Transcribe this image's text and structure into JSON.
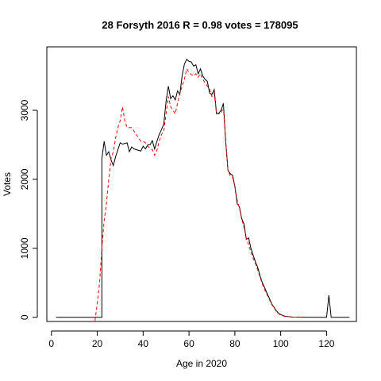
{
  "chart_data": {
    "type": "line",
    "title": "28 Forsyth 2016 R = 0.98 votes = 178095",
    "xlabel": "Age in 2020",
    "ylabel": "Votes",
    "xlim": [
      -2,
      133
    ],
    "ylim": [
      -60,
      3920
    ],
    "x_ticks": [
      0,
      20,
      40,
      60,
      80,
      100,
      120
    ],
    "y_ticks": [
      0,
      1000,
      2000,
      3000
    ],
    "grid": false,
    "series": [
      {
        "style": "solid",
        "color": "#000000",
        "points": [
          [
            2,
            0
          ],
          [
            21,
            0
          ],
          [
            22,
            0
          ],
          [
            22,
            2300
          ],
          [
            23,
            2550
          ],
          [
            24,
            2350
          ],
          [
            25,
            2400
          ],
          [
            26,
            2280
          ],
          [
            27,
            2200
          ],
          [
            28,
            2330
          ],
          [
            29,
            2430
          ],
          [
            30,
            2530
          ],
          [
            31,
            2510
          ],
          [
            32,
            2520
          ],
          [
            33,
            2530
          ],
          [
            34,
            2400
          ],
          [
            35,
            2470
          ],
          [
            36,
            2440
          ],
          [
            37,
            2430
          ],
          [
            38,
            2420
          ],
          [
            39,
            2410
          ],
          [
            40,
            2480
          ],
          [
            41,
            2440
          ],
          [
            42,
            2500
          ],
          [
            43,
            2500
          ],
          [
            44,
            2560
          ],
          [
            45,
            2440
          ],
          [
            46,
            2550
          ],
          [
            47,
            2650
          ],
          [
            48,
            2720
          ],
          [
            49,
            2800
          ],
          [
            50,
            3130
          ],
          [
            51,
            3350
          ],
          [
            52,
            3170
          ],
          [
            53,
            3210
          ],
          [
            54,
            3150
          ],
          [
            55,
            3280
          ],
          [
            56,
            3230
          ],
          [
            57,
            3500
          ],
          [
            58,
            3670
          ],
          [
            59,
            3740
          ],
          [
            60,
            3710
          ],
          [
            61,
            3700
          ],
          [
            62,
            3640
          ],
          [
            63,
            3660
          ],
          [
            64,
            3530
          ],
          [
            65,
            3600
          ],
          [
            66,
            3500
          ],
          [
            67,
            3450
          ],
          [
            68,
            3420
          ],
          [
            69,
            3250
          ],
          [
            70,
            3230
          ],
          [
            71,
            3300
          ],
          [
            72,
            2950
          ],
          [
            73,
            2960
          ],
          [
            74,
            3000
          ],
          [
            75,
            3100
          ],
          [
            76,
            2550
          ],
          [
            77,
            2130
          ],
          [
            78,
            2080
          ],
          [
            79,
            2060
          ],
          [
            80,
            1900
          ],
          [
            81,
            1650
          ],
          [
            82,
            1600
          ],
          [
            83,
            1430
          ],
          [
            84,
            1350
          ],
          [
            85,
            1130
          ],
          [
            86,
            1150
          ],
          [
            87,
            1000
          ],
          [
            88,
            900
          ],
          [
            89,
            800
          ],
          [
            90,
            720
          ],
          [
            91,
            600
          ],
          [
            92,
            500
          ],
          [
            93,
            430
          ],
          [
            94,
            350
          ],
          [
            95,
            280
          ],
          [
            96,
            200
          ],
          [
            97,
            150
          ],
          [
            98,
            100
          ],
          [
            99,
            60
          ],
          [
            100,
            40
          ],
          [
            102,
            15
          ],
          [
            105,
            5
          ],
          [
            110,
            2
          ],
          [
            115,
            0
          ],
          [
            120,
            0
          ],
          [
            121,
            320
          ],
          [
            122,
            0
          ],
          [
            130,
            0
          ]
        ]
      },
      {
        "style": "dashed",
        "color": "#ff0000",
        "points": [
          [
            19,
            -50
          ],
          [
            20,
            200
          ],
          [
            21,
            500
          ],
          [
            22,
            1000
          ],
          [
            23,
            1400
          ],
          [
            24,
            1650
          ],
          [
            25,
            2000
          ],
          [
            26,
            2300
          ],
          [
            27,
            2400
          ],
          [
            28,
            2600
          ],
          [
            29,
            2750
          ],
          [
            30,
            2850
          ],
          [
            31,
            3050
          ],
          [
            32,
            2850
          ],
          [
            33,
            2750
          ],
          [
            34,
            2750
          ],
          [
            35,
            2750
          ],
          [
            36,
            2700
          ],
          [
            37,
            2650
          ],
          [
            38,
            2600
          ],
          [
            39,
            2550
          ],
          [
            40,
            2550
          ],
          [
            41,
            2530
          ],
          [
            42,
            2480
          ],
          [
            43,
            2450
          ],
          [
            44,
            2430
          ],
          [
            45,
            2350
          ],
          [
            46,
            2420
          ],
          [
            47,
            2550
          ],
          [
            48,
            2650
          ],
          [
            49,
            2700
          ],
          [
            50,
            2950
          ],
          [
            51,
            3200
          ],
          [
            52,
            3050
          ],
          [
            53,
            3000
          ],
          [
            54,
            2950
          ],
          [
            55,
            3100
          ],
          [
            56,
            3250
          ],
          [
            57,
            3350
          ],
          [
            58,
            3450
          ],
          [
            59,
            3600
          ],
          [
            60,
            3550
          ],
          [
            61,
            3520
          ],
          [
            62,
            3500
          ],
          [
            63,
            3530
          ],
          [
            64,
            3480
          ],
          [
            65,
            3530
          ],
          [
            66,
            3450
          ],
          [
            67,
            3400
          ],
          [
            68,
            3350
          ],
          [
            69,
            3300
          ],
          [
            70,
            3200
          ],
          [
            71,
            3250
          ],
          [
            72,
            2950
          ],
          [
            73,
            2950
          ],
          [
            74,
            2950
          ],
          [
            75,
            3050
          ],
          [
            76,
            2550
          ],
          [
            77,
            2130
          ],
          [
            78,
            2050
          ],
          [
            79,
            2030
          ],
          [
            80,
            1900
          ],
          [
            81,
            1700
          ],
          [
            82,
            1580
          ],
          [
            83,
            1420
          ],
          [
            84,
            1300
          ],
          [
            85,
            1150
          ],
          [
            86,
            1050
          ],
          [
            87,
            950
          ],
          [
            88,
            850
          ],
          [
            89,
            780
          ],
          [
            90,
            680
          ],
          [
            91,
            580
          ],
          [
            92,
            480
          ],
          [
            93,
            400
          ],
          [
            94,
            330
          ],
          [
            95,
            260
          ],
          [
            96,
            190
          ],
          [
            97,
            140
          ],
          [
            98,
            90
          ],
          [
            99,
            55
          ],
          [
            100,
            30
          ],
          [
            102,
            12
          ],
          [
            105,
            3
          ],
          [
            110,
            0
          ]
        ]
      }
    ]
  }
}
